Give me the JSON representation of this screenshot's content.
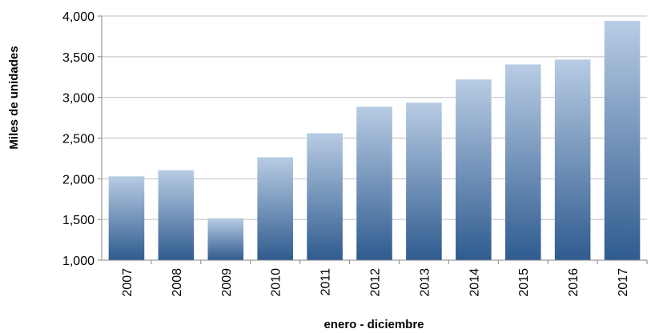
{
  "chart_data": {
    "type": "bar",
    "categories": [
      "2007",
      "2008",
      "2009",
      "2010",
      "2011",
      "2012",
      "2013",
      "2014",
      "2015",
      "2016",
      "2017"
    ],
    "values": [
      2030,
      2105,
      1515,
      2265,
      2560,
      2885,
      2935,
      3220,
      3405,
      3465,
      3940
    ],
    "xlabel": "enero - diciembre",
    "ylabel": "Miles de unidades",
    "ylim": [
      1000,
      4000
    ],
    "yticks": [
      1000,
      1500,
      2000,
      2500,
      3000,
      3500,
      4000
    ],
    "ytick_labels": [
      "1,000",
      "1,500",
      "2,000",
      "2,500",
      "3,000",
      "3,500",
      "4,000"
    ],
    "grid": true,
    "legend": "none",
    "colors": {
      "bar_top": "#b8cce4",
      "bar_bottom": "#2f5b8f",
      "grid": "#bfbfbf",
      "axis": "#868686"
    }
  }
}
